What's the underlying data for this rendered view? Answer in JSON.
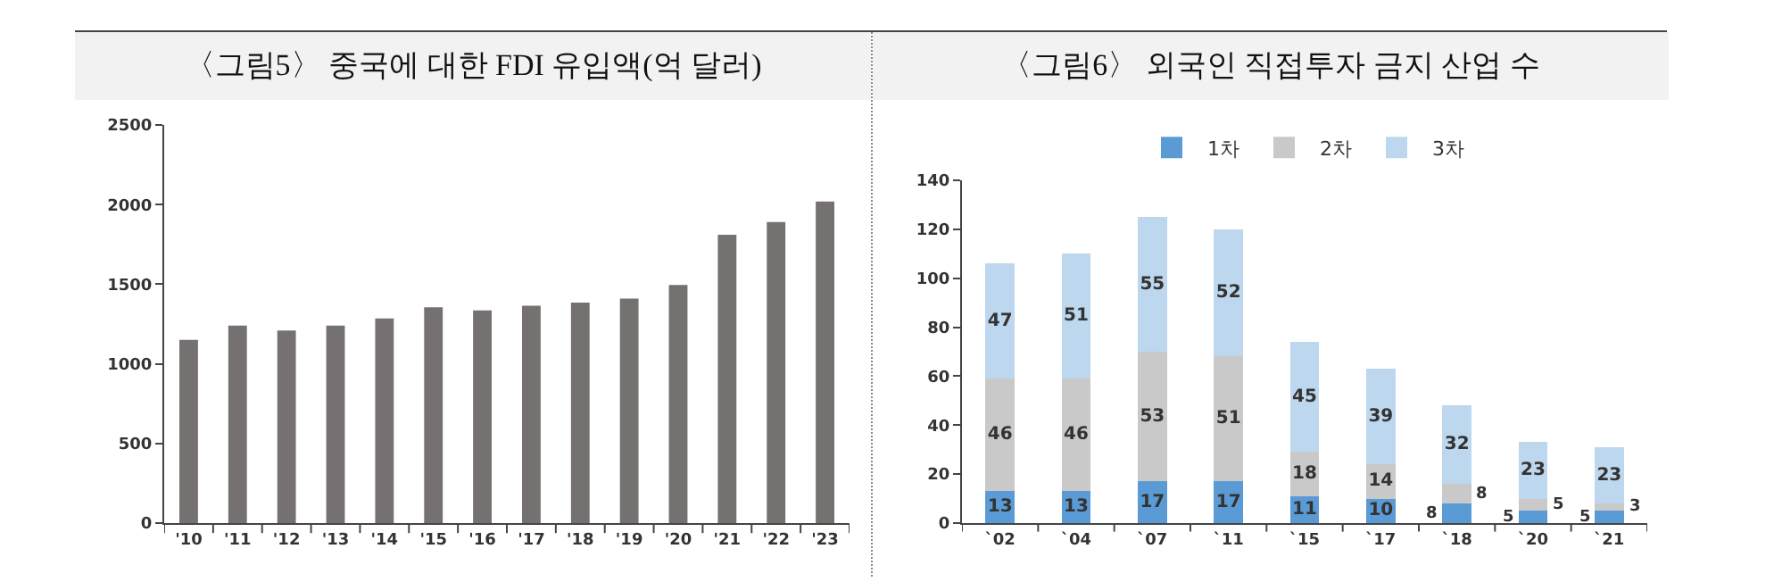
{
  "chart_data": [
    {
      "type": "bar",
      "title": "〈그림5〉 중국에 대한 FDI 유입액(억 달러)",
      "categories": [
        "'10",
        "'11",
        "'12",
        "'13",
        "'14",
        "'15",
        "'16",
        "'17",
        "'18",
        "'19",
        "'20",
        "'21",
        "'22",
        "'23"
      ],
      "values": [
        1150,
        1240,
        1210,
        1240,
        1285,
        1355,
        1335,
        1365,
        1385,
        1410,
        1495,
        1810,
        1890,
        2020
      ],
      "color": "#767171",
      "ylim": [
        0,
        2500
      ],
      "yticks": [
        0,
        500,
        1000,
        1500,
        2000,
        2500
      ]
    },
    {
      "type": "bar",
      "title": "〈그림6〉 외국인 직접투자 금지 산업 수",
      "categories": [
        "`02",
        "`04",
        "`07",
        "`11",
        "`15",
        "`17",
        "`18",
        "`20",
        "`21"
      ],
      "stacked": true,
      "data_labels": true,
      "legend": "top",
      "ylim": [
        0,
        140
      ],
      "yticks": [
        0,
        20,
        40,
        60,
        80,
        100,
        120,
        140
      ],
      "series": [
        {
          "name": "1차",
          "color": "#5b9bd5",
          "values": [
            13,
            13,
            17,
            17,
            11,
            10,
            8,
            5,
            5
          ]
        },
        {
          "name": "2차",
          "color": "#c9c9c9",
          "values": [
            46,
            46,
            53,
            51,
            18,
            14,
            8,
            5,
            3
          ]
        },
        {
          "name": "3차",
          "color": "#bdd7ee",
          "values": [
            47,
            51,
            55,
            52,
            45,
            39,
            32,
            23,
            23
          ]
        }
      ]
    }
  ]
}
